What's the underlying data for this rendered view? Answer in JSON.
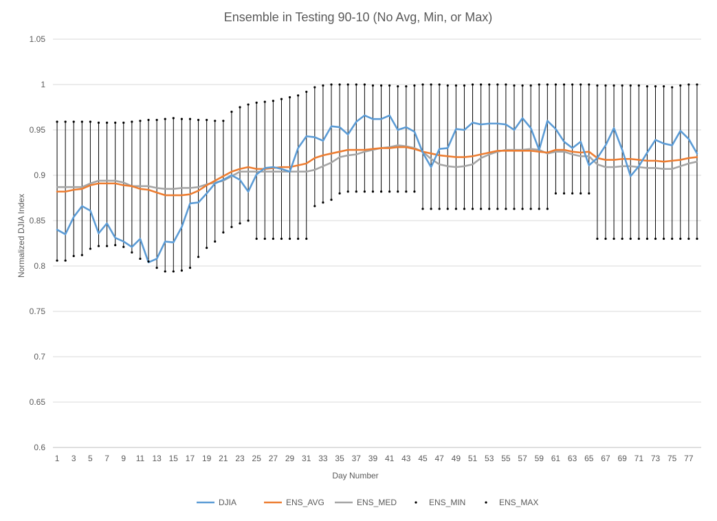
{
  "chart_data": {
    "type": "line",
    "title": "Ensemble in Testing 90-10 (No Avg, Min, or Max)",
    "xlabel": "Day Number",
    "ylabel": "Normalized DJIA Index",
    "ylim": [
      0.6,
      1.05
    ],
    "yticks": [
      "0.6",
      "0.65",
      "0.7",
      "0.75",
      "0.8",
      "0.85",
      "0.9",
      "0.95",
      "1",
      "1.05"
    ],
    "ytick_values": [
      0.6,
      0.65,
      0.7,
      0.75,
      0.8,
      0.85,
      0.9,
      0.95,
      1.0,
      1.05
    ],
    "xticks": [
      "1",
      "3",
      "5",
      "7",
      "9",
      "11",
      "13",
      "15",
      "17",
      "19",
      "21",
      "23",
      "25",
      "27",
      "29",
      "31",
      "33",
      "35",
      "37",
      "39",
      "41",
      "43",
      "45",
      "47",
      "49",
      "51",
      "53",
      "55",
      "57",
      "59",
      "61",
      "63",
      "65",
      "67",
      "69",
      "71",
      "73",
      "75",
      "77"
    ],
    "x": [
      1,
      2,
      3,
      4,
      5,
      6,
      7,
      8,
      9,
      10,
      11,
      12,
      13,
      14,
      15,
      16,
      17,
      18,
      19,
      20,
      21,
      22,
      23,
      24,
      25,
      26,
      27,
      28,
      29,
      30,
      31,
      32,
      33,
      34,
      35,
      36,
      37,
      38,
      39,
      40,
      41,
      42,
      43,
      44,
      45,
      46,
      47,
      48,
      49,
      50,
      51,
      52,
      53,
      54,
      55,
      56,
      57,
      58,
      59,
      60,
      61,
      62,
      63,
      64,
      65,
      66,
      67,
      68,
      69,
      70,
      71,
      72,
      73,
      74,
      75,
      76,
      77,
      78
    ],
    "grid": "horizontal",
    "legend_position": "bottom",
    "series": [
      {
        "name": "DJIA",
        "style": "line",
        "color": "#5B9BD5",
        "values": [
          0.84,
          0.835,
          0.854,
          0.866,
          0.861,
          0.836,
          0.847,
          0.831,
          0.827,
          0.821,
          0.83,
          0.804,
          0.808,
          0.827,
          0.826,
          0.843,
          0.869,
          0.87,
          0.88,
          0.891,
          0.895,
          0.9,
          0.895,
          0.882,
          0.901,
          0.908,
          0.909,
          0.907,
          0.904,
          0.93,
          0.943,
          0.942,
          0.938,
          0.954,
          0.953,
          0.945,
          0.959,
          0.966,
          0.962,
          0.962,
          0.966,
          0.95,
          0.953,
          0.948,
          0.925,
          0.909,
          0.929,
          0.93,
          0.951,
          0.95,
          0.958,
          0.956,
          0.957,
          0.957,
          0.956,
          0.95,
          0.963,
          0.952,
          0.928,
          0.96,
          0.951,
          0.937,
          0.93,
          0.937,
          0.911,
          0.919,
          0.933,
          0.952,
          0.928,
          0.899,
          0.91,
          0.925,
          0.939,
          0.935,
          0.933,
          0.949,
          0.94,
          0.924
        ]
      },
      {
        "name": "ENS_AVG",
        "style": "line",
        "color": "#ED7D31",
        "values": [
          0.882,
          0.882,
          0.884,
          0.885,
          0.889,
          0.891,
          0.891,
          0.891,
          0.889,
          0.888,
          0.885,
          0.884,
          0.881,
          0.878,
          0.878,
          0.878,
          0.879,
          0.883,
          0.889,
          0.894,
          0.899,
          0.904,
          0.907,
          0.909,
          0.907,
          0.907,
          0.908,
          0.909,
          0.909,
          0.911,
          0.913,
          0.919,
          0.922,
          0.924,
          0.926,
          0.928,
          0.928,
          0.928,
          0.929,
          0.93,
          0.93,
          0.931,
          0.931,
          0.929,
          0.926,
          0.924,
          0.922,
          0.921,
          0.92,
          0.92,
          0.921,
          0.923,
          0.925,
          0.927,
          0.927,
          0.927,
          0.927,
          0.927,
          0.926,
          0.925,
          0.928,
          0.928,
          0.926,
          0.925,
          0.926,
          0.919,
          0.917,
          0.917,
          0.918,
          0.918,
          0.917,
          0.916,
          0.916,
          0.915,
          0.916,
          0.917,
          0.919,
          0.92
        ]
      },
      {
        "name": "ENS_MED",
        "style": "line",
        "color": "#A5A5A5",
        "values": [
          0.887,
          0.887,
          0.887,
          0.887,
          0.891,
          0.894,
          0.894,
          0.894,
          0.892,
          0.888,
          0.888,
          0.888,
          0.886,
          0.885,
          0.885,
          0.886,
          0.886,
          0.887,
          0.89,
          0.892,
          0.894,
          0.899,
          0.904,
          0.904,
          0.904,
          0.904,
          0.904,
          0.904,
          0.904,
          0.904,
          0.904,
          0.906,
          0.91,
          0.914,
          0.92,
          0.922,
          0.923,
          0.926,
          0.928,
          0.93,
          0.931,
          0.933,
          0.932,
          0.93,
          0.926,
          0.918,
          0.912,
          0.91,
          0.909,
          0.91,
          0.912,
          0.919,
          0.923,
          0.926,
          0.928,
          0.928,
          0.928,
          0.929,
          0.928,
          0.924,
          0.926,
          0.926,
          0.923,
          0.921,
          0.921,
          0.912,
          0.909,
          0.909,
          0.91,
          0.91,
          0.909,
          0.908,
          0.908,
          0.907,
          0.907,
          0.91,
          0.913,
          0.915
        ]
      },
      {
        "name": "ENS_MIN",
        "style": "marker",
        "color": "#000000",
        "values": [
          0.806,
          0.806,
          0.811,
          0.812,
          0.819,
          0.822,
          0.822,
          0.823,
          0.821,
          0.815,
          0.808,
          0.805,
          0.798,
          0.794,
          0.794,
          0.795,
          0.798,
          0.81,
          0.82,
          0.827,
          0.837,
          0.843,
          0.847,
          0.85,
          0.83,
          0.83,
          0.83,
          0.83,
          0.83,
          0.83,
          0.83,
          0.866,
          0.87,
          0.873,
          0.88,
          0.882,
          0.882,
          0.882,
          0.882,
          0.882,
          0.882,
          0.882,
          0.882,
          0.882,
          0.863,
          0.863,
          0.863,
          0.863,
          0.863,
          0.863,
          0.863,
          0.863,
          0.863,
          0.863,
          0.863,
          0.863,
          0.863,
          0.863,
          0.863,
          0.863,
          0.88,
          0.88,
          0.88,
          0.88,
          0.88,
          0.83,
          0.83,
          0.83,
          0.83,
          0.83,
          0.83,
          0.83,
          0.83,
          0.83,
          0.83,
          0.83,
          0.83,
          0.83
        ]
      },
      {
        "name": "ENS_MAX",
        "style": "marker",
        "color": "#000000",
        "values": [
          0.959,
          0.959,
          0.959,
          0.959,
          0.959,
          0.958,
          0.958,
          0.958,
          0.958,
          0.959,
          0.96,
          0.961,
          0.961,
          0.962,
          0.963,
          0.962,
          0.962,
          0.961,
          0.961,
          0.96,
          0.96,
          0.97,
          0.975,
          0.978,
          0.98,
          0.981,
          0.982,
          0.984,
          0.986,
          0.988,
          0.992,
          0.997,
          0.999,
          1.0,
          1.0,
          1.0,
          1.0,
          1.0,
          0.999,
          0.999,
          0.999,
          0.998,
          0.998,
          0.999,
          1.0,
          1.0,
          1.0,
          0.999,
          0.999,
          0.999,
          1.0,
          1.0,
          1.0,
          1.0,
          1.0,
          0.999,
          0.999,
          0.999,
          1.0,
          1.0,
          1.0,
          1.0,
          1.0,
          1.0,
          1.0,
          0.999,
          0.999,
          0.999,
          0.999,
          0.999,
          0.999,
          0.998,
          0.998,
          0.998,
          0.997,
          0.999,
          1.0,
          1.0
        ]
      }
    ]
  }
}
